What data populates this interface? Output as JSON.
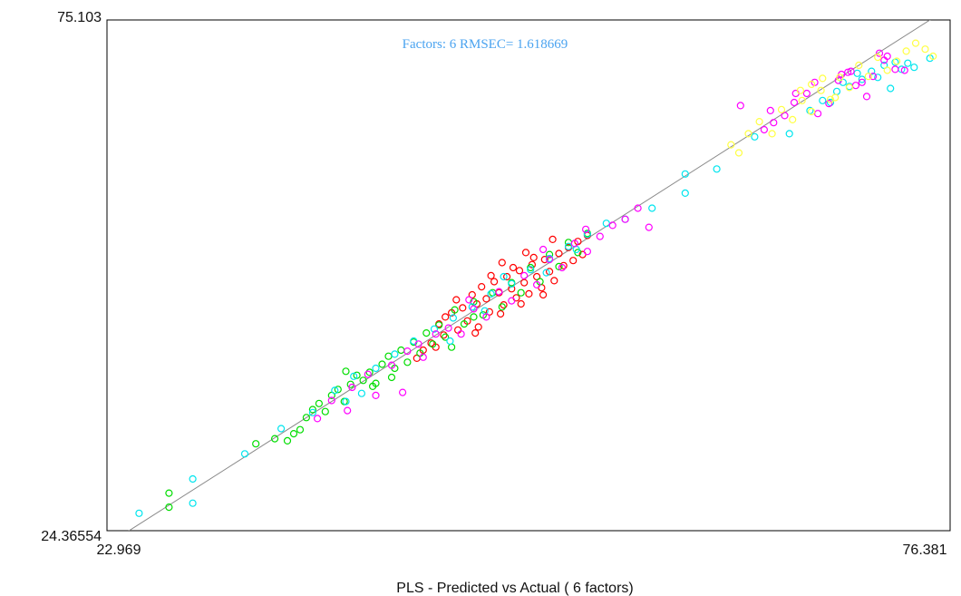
{
  "chart_data": {
    "type": "scatter",
    "title": "",
    "xlabel": "PLS - Predicted vs Actual ( 6 factors)",
    "ylabel": "",
    "xlim": [
      22.969,
      76.381
    ],
    "ylim": [
      24.36554,
      75.103
    ],
    "x_tick_labels": [
      "22.969",
      "76.381"
    ],
    "y_tick_labels": [
      "75.103",
      "24.36554"
    ],
    "annotation": {
      "text": "Factors: 6 RMSEC= 1.618669",
      "color": "#4aa3f0"
    },
    "grid": false,
    "reference_line": {
      "type": "identity",
      "from": [
        22.969,
        22.969
      ],
      "to": [
        76.381,
        76.381
      ],
      "color": "#888888"
    },
    "marker": "open-circle",
    "series": [
      {
        "color": "#ff0000",
        "points": [
          [
            44.4,
            45.6
          ],
          [
            44.8,
            46.0
          ],
          [
            45.1,
            47.3
          ],
          [
            45.5,
            46.5
          ],
          [
            45.8,
            45.2
          ],
          [
            46.1,
            47.8
          ],
          [
            46.4,
            46.9
          ],
          [
            46.7,
            48.6
          ],
          [
            47.0,
            47.4
          ],
          [
            47.2,
            46.1
          ],
          [
            47.5,
            49.1
          ],
          [
            47.8,
            48.0
          ],
          [
            48.1,
            46.8
          ],
          [
            48.3,
            49.6
          ],
          [
            48.6,
            48.4
          ],
          [
            48.9,
            47.5
          ],
          [
            49.1,
            50.2
          ],
          [
            49.4,
            49.0
          ],
          [
            49.7,
            47.9
          ],
          [
            49.9,
            50.8
          ],
          [
            50.2,
            49.6
          ],
          [
            50.5,
            48.5
          ],
          [
            50.7,
            51.3
          ],
          [
            51.0,
            50.1
          ],
          [
            51.3,
            49.2
          ],
          [
            51.6,
            51.9
          ],
          [
            51.9,
            50.7
          ],
          [
            52.2,
            52.5
          ],
          [
            52.5,
            51.2
          ],
          [
            52.8,
            53.1
          ],
          [
            53.1,
            51.8
          ],
          [
            53.4,
            53.7
          ],
          [
            46.5,
            44.6
          ],
          [
            47.9,
            45.9
          ],
          [
            49.2,
            46.9
          ],
          [
            50.6,
            47.8
          ],
          [
            48.0,
            51.0
          ],
          [
            49.5,
            52.0
          ],
          [
            51.2,
            53.3
          ],
          [
            45.2,
            44.3
          ],
          [
            46.3,
            44.0
          ],
          [
            44.0,
            44.9
          ],
          [
            43.5,
            43.0
          ],
          [
            43.0,
            42.3
          ],
          [
            43.8,
            42.6
          ],
          [
            42.6,
            41.5
          ],
          [
            44.3,
            43.8
          ],
          [
            47.3,
            49.7
          ],
          [
            48.7,
            50.5
          ],
          [
            50.0,
            51.5
          ]
        ]
      },
      {
        "color": "#00dd00",
        "points": [
          [
            26.9,
            28.1
          ],
          [
            26.9,
            26.7
          ],
          [
            32.4,
            33.0
          ],
          [
            33.6,
            33.5
          ],
          [
            34.4,
            33.3
          ],
          [
            34.8,
            34.0
          ],
          [
            35.2,
            34.4
          ],
          [
            35.6,
            35.6
          ],
          [
            36.0,
            36.4
          ],
          [
            36.4,
            37.0
          ],
          [
            36.8,
            36.2
          ],
          [
            37.2,
            37.8
          ],
          [
            37.6,
            38.4
          ],
          [
            38.0,
            37.2
          ],
          [
            38.4,
            38.9
          ],
          [
            38.8,
            39.8
          ],
          [
            39.2,
            39.3
          ],
          [
            39.6,
            40.1
          ],
          [
            40.0,
            39.0
          ],
          [
            40.4,
            40.9
          ],
          [
            40.8,
            41.7
          ],
          [
            41.2,
            40.5
          ],
          [
            41.6,
            42.3
          ],
          [
            42.0,
            41.1
          ],
          [
            42.4,
            43.1
          ],
          [
            42.8,
            42.0
          ],
          [
            43.2,
            44.0
          ],
          [
            43.6,
            42.9
          ],
          [
            44.0,
            44.8
          ],
          [
            44.4,
            43.6
          ],
          [
            45.0,
            46.3
          ],
          [
            45.6,
            44.9
          ],
          [
            46.2,
            47.1
          ],
          [
            46.8,
            45.8
          ],
          [
            47.4,
            48.0
          ],
          [
            48.0,
            46.6
          ],
          [
            48.6,
            49.0
          ],
          [
            49.2,
            48.0
          ],
          [
            49.8,
            50.5
          ],
          [
            50.4,
            49.1
          ],
          [
            51.0,
            51.8
          ],
          [
            51.6,
            50.6
          ],
          [
            52.2,
            53.0
          ],
          [
            52.8,
            52.0
          ],
          [
            53.4,
            53.9
          ],
          [
            41.0,
            39.6
          ],
          [
            39.8,
            38.7
          ],
          [
            38.1,
            40.2
          ],
          [
            44.8,
            42.6
          ],
          [
            46.2,
            45.6
          ]
        ]
      },
      {
        "color": "#00e5ee",
        "points": [
          [
            25.0,
            26.1
          ],
          [
            28.4,
            29.5
          ],
          [
            28.4,
            27.1
          ],
          [
            31.7,
            32.0
          ],
          [
            34.0,
            34.5
          ],
          [
            36.0,
            36.1
          ],
          [
            37.4,
            38.3
          ],
          [
            38.6,
            39.7
          ],
          [
            40.0,
            40.5
          ],
          [
            41.2,
            41.9
          ],
          [
            42.4,
            43.2
          ],
          [
            43.7,
            44.4
          ],
          [
            44.9,
            45.5
          ],
          [
            46.1,
            46.6
          ],
          [
            47.3,
            47.9
          ],
          [
            48.6,
            48.9
          ],
          [
            49.8,
            50.3
          ],
          [
            51.0,
            51.4
          ],
          [
            52.2,
            52.6
          ],
          [
            53.4,
            53.8
          ],
          [
            54.6,
            54.9
          ],
          [
            55.8,
            55.3
          ],
          [
            57.5,
            56.4
          ],
          [
            59.6,
            57.9
          ],
          [
            59.6,
            59.8
          ],
          [
            46.9,
            46.2
          ],
          [
            50.8,
            50.0
          ],
          [
            52.7,
            52.3
          ],
          [
            48.1,
            49.6
          ],
          [
            44.7,
            43.2
          ],
          [
            38.1,
            37.2
          ],
          [
            39.1,
            38.0
          ],
          [
            66.2,
            63.8
          ],
          [
            68.3,
            67.1
          ],
          [
            69.2,
            68.0
          ],
          [
            70.0,
            68.5
          ],
          [
            70.8,
            69.2
          ],
          [
            71.4,
            70.0
          ],
          [
            72.2,
            70.6
          ],
          [
            72.9,
            70.9
          ],
          [
            73.7,
            70.8
          ],
          [
            75.1,
            71.3
          ],
          [
            69.6,
            68.9
          ],
          [
            70.5,
            69.8
          ],
          [
            71.8,
            69.4
          ],
          [
            72.6,
            68.3
          ],
          [
            73.3,
            70.2
          ],
          [
            74.1,
            70.4
          ],
          [
            67.5,
            66.1
          ],
          [
            68.8,
            66.9
          ],
          [
            64.0,
            63.5
          ],
          [
            61.6,
            60.3
          ]
        ]
      },
      {
        "color": "#ff00ff",
        "points": [
          [
            36.3,
            35.5
          ],
          [
            37.2,
            37.3
          ],
          [
            38.2,
            36.3
          ],
          [
            38.5,
            38.6
          ],
          [
            39.5,
            39.9
          ],
          [
            40.0,
            37.8
          ],
          [
            41.0,
            40.8
          ],
          [
            42.0,
            42.2
          ],
          [
            43.0,
            41.6
          ],
          [
            43.8,
            43.9
          ],
          [
            44.6,
            44.5
          ],
          [
            45.4,
            43.9
          ],
          [
            46.2,
            46.4
          ],
          [
            47.0,
            45.6
          ],
          [
            47.8,
            48.1
          ],
          [
            48.6,
            47.2
          ],
          [
            49.4,
            49.7
          ],
          [
            50.2,
            48.8
          ],
          [
            51.0,
            51.3
          ],
          [
            51.8,
            50.5
          ],
          [
            52.6,
            52.9
          ],
          [
            53.4,
            52.1
          ],
          [
            54.2,
            53.6
          ],
          [
            55.0,
            54.7
          ],
          [
            55.8,
            55.3
          ],
          [
            56.6,
            56.4
          ],
          [
            57.3,
            54.5
          ],
          [
            50.6,
            52.3
          ],
          [
            53.3,
            54.3
          ],
          [
            45.9,
            47.3
          ],
          [
            63.1,
            66.6
          ],
          [
            64.6,
            64.2
          ],
          [
            65.2,
            64.9
          ],
          [
            65.9,
            65.6
          ],
          [
            66.5,
            66.9
          ],
          [
            67.3,
            67.8
          ],
          [
            68.0,
            65.8
          ],
          [
            68.7,
            66.8
          ],
          [
            69.3,
            69.1
          ],
          [
            70.1,
            70.0
          ],
          [
            70.8,
            68.9
          ],
          [
            71.5,
            69.5
          ],
          [
            72.2,
            71.1
          ],
          [
            72.9,
            70.2
          ],
          [
            73.5,
            70.1
          ],
          [
            71.9,
            71.8
          ],
          [
            70.4,
            68.6
          ],
          [
            69.5,
            69.7
          ],
          [
            71.1,
            67.5
          ],
          [
            69.9,
            69.9
          ],
          [
            72.4,
            71.5
          ],
          [
            67.8,
            68.9
          ],
          [
            66.6,
            67.8
          ],
          [
            65.0,
            66.1
          ],
          [
            42.7,
            42.9
          ],
          [
            41.7,
            38.1
          ]
        ]
      },
      {
        "color": "#ffff44",
        "points": [
          [
            62.5,
            62.7
          ],
          [
            63.0,
            61.9
          ],
          [
            63.6,
            63.8
          ],
          [
            64.3,
            65.0
          ],
          [
            65.1,
            63.8
          ],
          [
            65.7,
            66.2
          ],
          [
            66.4,
            65.2
          ],
          [
            67.0,
            67.1
          ],
          [
            67.6,
            66.0
          ],
          [
            68.2,
            68.1
          ],
          [
            68.8,
            67.2
          ],
          [
            69.4,
            69.4
          ],
          [
            70.0,
            68.4
          ],
          [
            70.6,
            70.6
          ],
          [
            71.2,
            69.5
          ],
          [
            71.8,
            71.4
          ],
          [
            72.4,
            70.1
          ],
          [
            73.0,
            71.0
          ],
          [
            73.6,
            72.0
          ],
          [
            74.2,
            72.8
          ],
          [
            74.8,
            72.2
          ],
          [
            75.3,
            71.5
          ],
          [
            66.9,
            68.1
          ],
          [
            68.3,
            69.3
          ],
          [
            67.6,
            68.7
          ],
          [
            69.1,
            67.4
          ]
        ]
      }
    ]
  }
}
